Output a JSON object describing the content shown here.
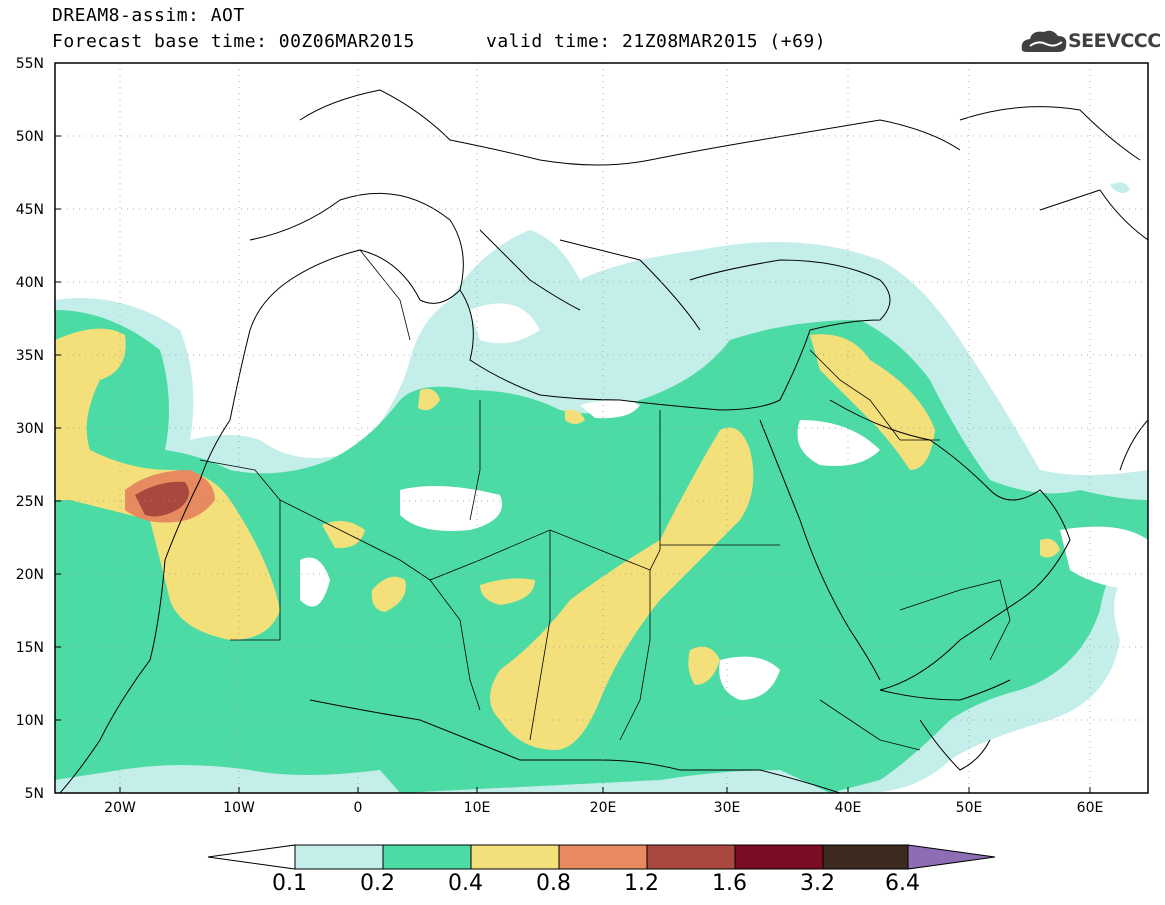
{
  "header": {
    "line1": "DREAM8-assim: AOT",
    "base_time": "Forecast base time: 00Z06MAR2015",
    "valid_time": "valid time: 21Z08MAR2015 (+69)",
    "logo_text": "SEEVCCC",
    "logo_icon": "cloud-logo-icon"
  },
  "map": {
    "lat_labels": [
      "55N",
      "50N",
      "45N",
      "40N",
      "35N",
      "30N",
      "25N",
      "20N",
      "15N",
      "10N",
      "5N"
    ],
    "lon_labels": [
      "20W",
      "10W",
      "0",
      "10E",
      "20E",
      "30E",
      "40E",
      "50E",
      "60E"
    ]
  },
  "legend": {
    "thresholds": [
      "0.1",
      "0.2",
      "0.4",
      "0.8",
      "1.2",
      "1.6",
      "3.2",
      "6.4"
    ],
    "colors": [
      "#ffffff",
      "#c4eee9",
      "#4ddba5",
      "#f4e07a",
      "#e88a5f",
      "#a9483e",
      "#7a0d24",
      "#3c2a1e",
      "#8d6db3"
    ]
  }
}
